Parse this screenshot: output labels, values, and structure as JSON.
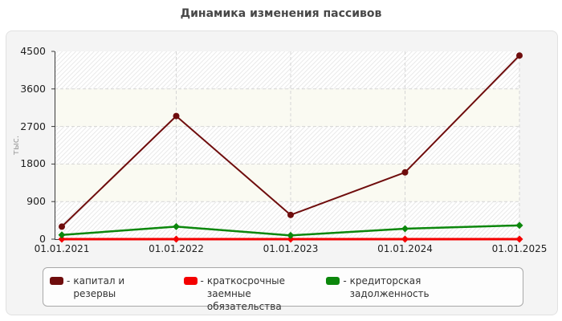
{
  "title": "Динамика изменения пассивов",
  "legend_dash": "-",
  "chart_data": {
    "type": "line",
    "categories": [
      "01.01.2021",
      "01.01.2022",
      "01.01.2023",
      "01.01.2024",
      "01.01.2025"
    ],
    "series": [
      {
        "name": "капитал и резервы",
        "color": "#6f0d0d",
        "marker": "circle",
        "line_width": 2,
        "values": [
          300,
          2950,
          580,
          1600,
          4400
        ]
      },
      {
        "name": "краткосрочные заемные обязательства",
        "color": "#f40000",
        "marker": "diamond",
        "line_width": 3,
        "values": [
          0,
          0,
          0,
          0,
          0
        ]
      },
      {
        "name": "кредиторская задолженность",
        "color": "#0c870c",
        "marker": "diamond",
        "line_width": 2.5,
        "values": [
          100,
          300,
          90,
          250,
          330
        ]
      }
    ],
    "title": "Динамика изменения пассивов",
    "xlabel": "",
    "ylabel": "тыс.",
    "yticks": [
      0,
      900,
      1800,
      2700,
      3600,
      4500
    ],
    "ylim": [
      0,
      4500
    ],
    "grid": "dashed",
    "legend_position": "bottom",
    "plot_band_colors": [
      "hatch",
      "#fafaf2"
    ],
    "gridline_color": "#d5d5d5",
    "axis_color": "#3a3a3a"
  }
}
